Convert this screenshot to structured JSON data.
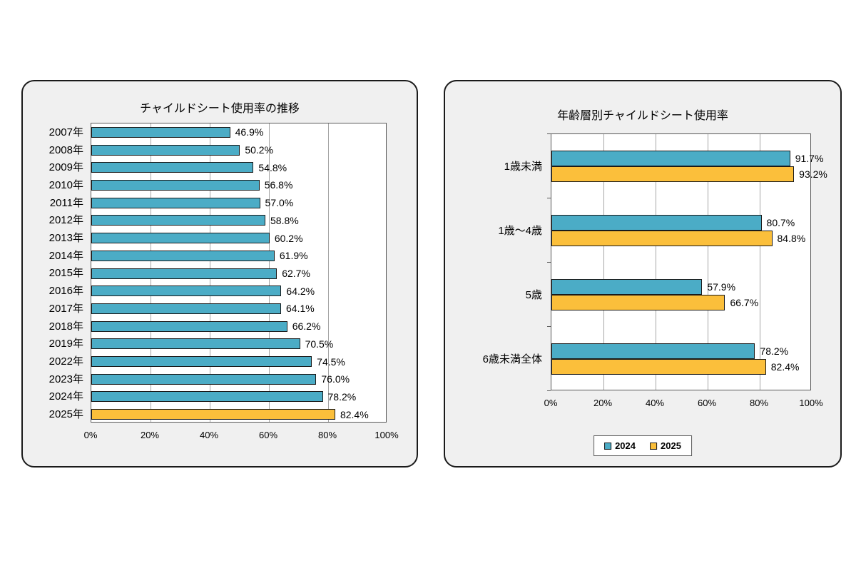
{
  "colors": {
    "teal": "#4BACC6",
    "gold": "#FBBF3B",
    "panel_bg": "#f0f0f0",
    "plot_bg": "#ffffff",
    "gridline": "#a6a6a6",
    "bar_border": "#1a1a1a"
  },
  "chart_data": [
    {
      "type": "bar",
      "orientation": "horizontal",
      "title": "チャイルドシート使用率の推移",
      "categories": [
        "2007年",
        "2008年",
        "2009年",
        "2010年",
        "2011年",
        "2012年",
        "2013年",
        "2014年",
        "2015年",
        "2016年",
        "2017年",
        "2018年",
        "2019年",
        "2022年",
        "2023年",
        "2024年",
        "2025年"
      ],
      "values": [
        46.9,
        50.2,
        54.8,
        56.8,
        57.0,
        58.8,
        60.2,
        61.9,
        62.7,
        64.2,
        64.1,
        66.2,
        70.5,
        74.5,
        76.0,
        78.2,
        82.4
      ],
      "value_labels": [
        "46.9%",
        "50.2%",
        "54.8%",
        "56.8%",
        "57.0%",
        "58.8%",
        "60.2%",
        "61.9%",
        "62.7%",
        "64.2%",
        "64.1%",
        "66.2%",
        "70.5%",
        "74.5%",
        "76.0%",
        "78.2%",
        "82.4%"
      ],
      "highlight_category": "2025年",
      "x_ticks": [
        "0%",
        "20%",
        "40%",
        "60%",
        "80%",
        "100%"
      ],
      "xlim": [
        0,
        100
      ],
      "grid": true,
      "legend_position": "none"
    },
    {
      "type": "bar",
      "orientation": "horizontal",
      "title": "年齢層別チャイルドシート使用率",
      "categories": [
        "1歳未満",
        "1歳～4歳",
        "5歳",
        "6歳未満全体"
      ],
      "series": [
        {
          "name": "2024",
          "color_key": "teal",
          "values": [
            91.7,
            80.7,
            57.9,
            78.2
          ],
          "value_labels": [
            "91.7%",
            "80.7%",
            "57.9%",
            "78.2%"
          ]
        },
        {
          "name": "2025",
          "color_key": "gold",
          "values": [
            93.2,
            84.8,
            66.7,
            82.4
          ],
          "value_labels": [
            "93.2%",
            "84.8%",
            "66.7%",
            "82.4%"
          ]
        }
      ],
      "x_ticks": [
        "0%",
        "20%",
        "40%",
        "60%",
        "80%",
        "100%"
      ],
      "xlim": [
        0,
        100
      ],
      "grid": true,
      "legend": [
        "2024",
        "2025"
      ],
      "legend_position": "bottom"
    }
  ]
}
